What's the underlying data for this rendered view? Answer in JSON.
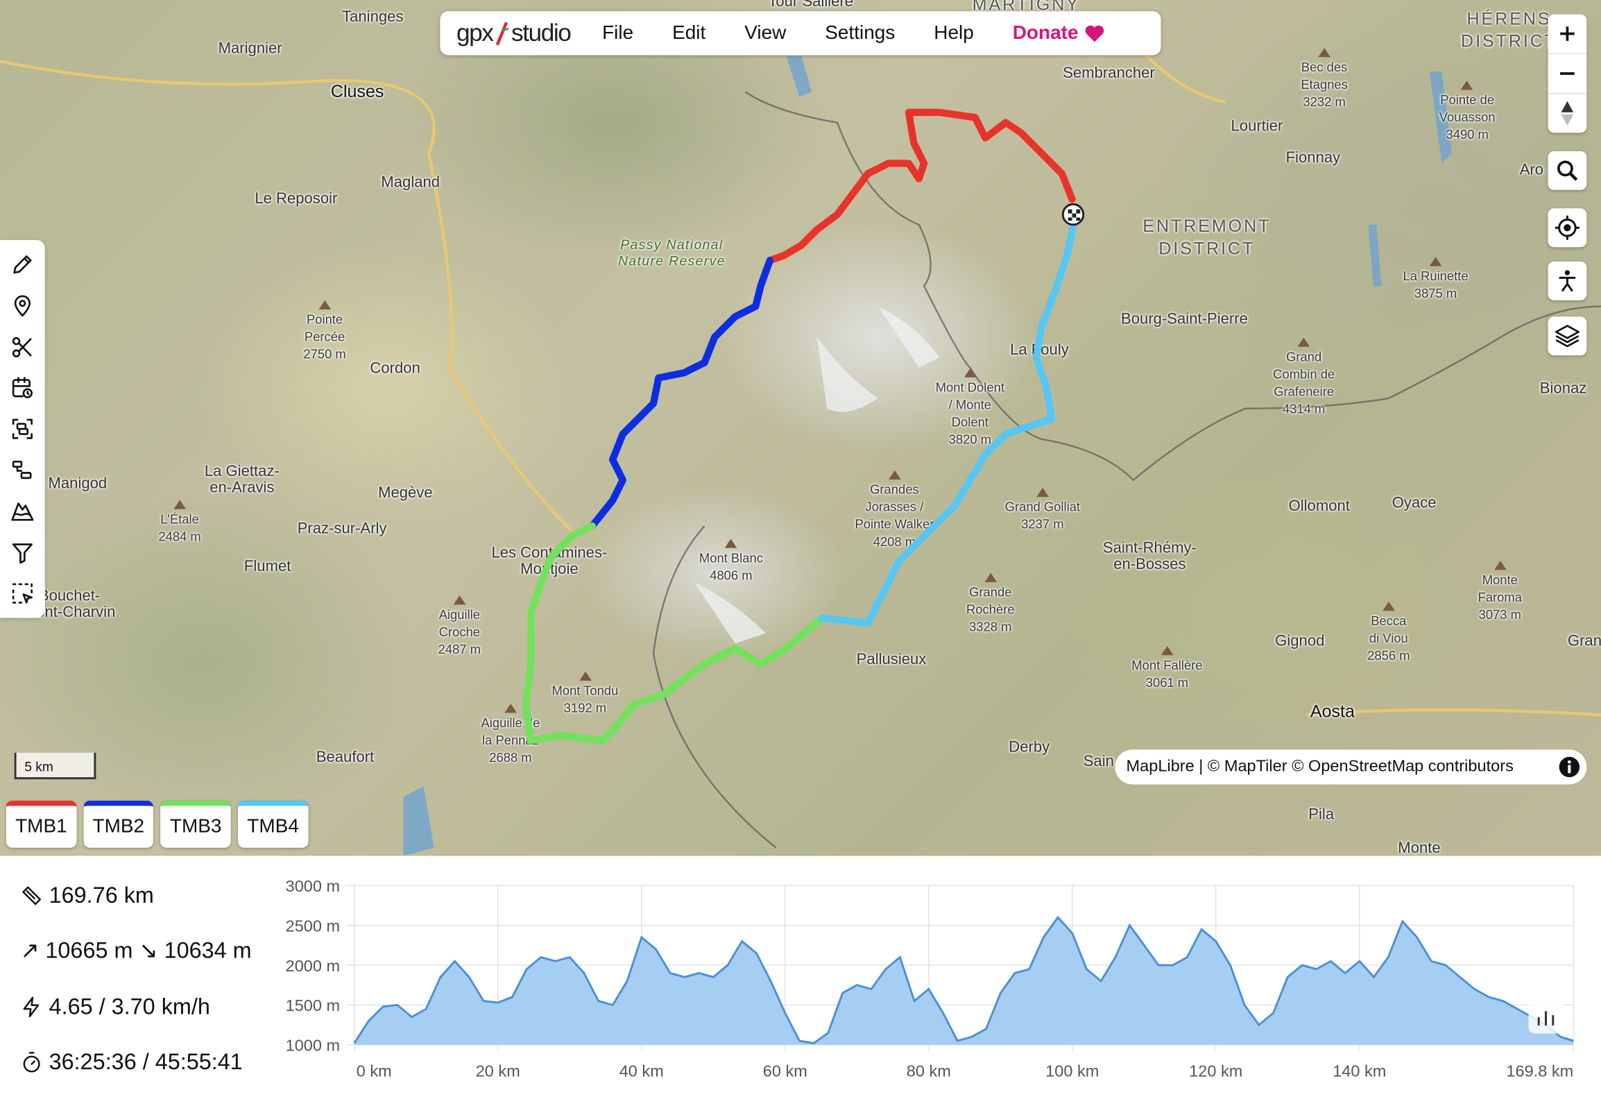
{
  "app": {
    "logo_left": "gpx",
    "logo_right": "studio"
  },
  "menu": {
    "file": "File",
    "edit": "Edit",
    "view": "View",
    "settings": "Settings",
    "help": "Help",
    "donate": "Donate"
  },
  "map": {
    "scale_label": "5 km",
    "attribution": "MapLibre | © MapTiler © OpenStreetMap contributors",
    "labels": {
      "taninges": "Taninges",
      "marignier": "Marignier",
      "cluses": "Cluses",
      "reposoir": "Le Reposoir",
      "magland": "Magland",
      "passy": "Passy National\nNature Reserve",
      "pointe_percee": "Pointe\nPercée\n2750 m",
      "cordon": "Cordon",
      "manigod": "Manigod",
      "giettaz": "La Giettaz-\nen-Aravis",
      "megeve": "Megève",
      "praz": "Praz-sur-Arly",
      "etale": "L'Étale\n2484 m",
      "flumet": "Flumet",
      "bouchet": "Bouchet-\nMont-Charvin",
      "contamines": "Les Contamines-\nMontjoie",
      "croche": "Aiguille\nCroche\n2487 m",
      "tondu": "Mont Tondu\n3192 m",
      "pennaz": "Aiguille de\nla Pennaz\n2688 m",
      "beaufort": "Beaufort",
      "montblanc": "Mont Blanc\n4806 m",
      "jorasses": "Grandes\nJorasses /\nPointe Walker\n4208 m",
      "dolent": "Mont Dolent\n/ Monte\nDolent\n3820 m",
      "fouly": "La Fouly",
      "golliat": "Grand Golliat\n3237 m",
      "rochere": "Grande\nRochère\n3328 m",
      "pallusieux": "Pallusieux",
      "derby": "Derby",
      "sembrancher": "Sembrancher",
      "lourtier": "Lourtier",
      "fionnay": "Fionnay",
      "entremont": "ENTREMONT\nDISTRICT",
      "bsp": "Bourg-Saint-Pierre",
      "combin": "Grand\nCombin de\nGrafeneire\n4314 m",
      "etagnes": "Bec des\nEtagnes\n3232 m",
      "vouasson": "Pointe de\nVouasson\n3490 m",
      "herens": "HÉRENS\nDISTRICT",
      "ruinette": "La Ruinette\n3875 m",
      "bionaz": "Bionaz",
      "ollomont": "Ollomont",
      "oyace": "Oyace",
      "srb": "Saint-Rhémy-\nen-Bosses",
      "gignod": "Gignod",
      "viou": "Becca\ndi Viou\n2856 m",
      "faroma": "Monte\nFaroma\n3073 m",
      "fallere": "Mont Fallère\n3061 m",
      "aosta": "Aosta",
      "pila": "Pila",
      "monte": "Monte",
      "martigny": "MARTIGNY",
      "sallière": "Tour Sallière",
      "aro": "Aro",
      "gran": "Gran",
      "sain": "Sain"
    }
  },
  "tracks": [
    {
      "name": "TMB1",
      "color": "#e8332a"
    },
    {
      "name": "TMB2",
      "color": "#0d2ee0"
    },
    {
      "name": "TMB3",
      "color": "#72e25c"
    },
    {
      "name": "TMB4",
      "color": "#57c6f2"
    }
  ],
  "stats": {
    "distance": "169.76 km",
    "elevation": "10665 m ↘ 10634 m",
    "elevation_up_icon": "↗",
    "speed": "4.65 / 3.70 km/h",
    "time": "36:25:36 / 45:55:41"
  },
  "chart_data": {
    "type": "area",
    "xlabel": "",
    "ylabel": "",
    "xlim": [
      0,
      169.8
    ],
    "ylim": [
      1000,
      3000
    ],
    "x_ticks": [
      "0 km",
      "20 km",
      "40 km",
      "60 km",
      "80 km",
      "100 km",
      "120 km",
      "140 km",
      "169.8 km"
    ],
    "x_tick_values": [
      0,
      20,
      40,
      60,
      80,
      100,
      120,
      140,
      169.8
    ],
    "y_ticks": [
      "1000 m",
      "1500 m",
      "2000 m",
      "2500 m",
      "3000 m"
    ],
    "y_tick_values": [
      1000,
      1500,
      2000,
      2500,
      3000
    ],
    "grid": true,
    "fill_color": "#a6cdf2",
    "line_color": "#4a90d9",
    "x": [
      0,
      2,
      4,
      6,
      8,
      10,
      12,
      14,
      16,
      18,
      20,
      22,
      24,
      26,
      28,
      30,
      32,
      34,
      36,
      38,
      40,
      42,
      44,
      46,
      48,
      50,
      52,
      54,
      56,
      58,
      60,
      62,
      64,
      66,
      68,
      70,
      72,
      74,
      76,
      78,
      80,
      82,
      84,
      86,
      88,
      90,
      92,
      94,
      96,
      98,
      100,
      102,
      104,
      106,
      108,
      110,
      112,
      114,
      116,
      118,
      120,
      122,
      124,
      126,
      128,
      130,
      132,
      134,
      136,
      138,
      140,
      142,
      144,
      146,
      148,
      150,
      152,
      154,
      156,
      158,
      160,
      162,
      164,
      166,
      168,
      169.8
    ],
    "y": [
      1020,
      1300,
      1480,
      1500,
      1350,
      1450,
      1850,
      2050,
      1850,
      1550,
      1530,
      1600,
      1950,
      2100,
      2050,
      2100,
      1900,
      1550,
      1500,
      1800,
      2350,
      2200,
      1900,
      1850,
      1900,
      1850,
      2000,
      2300,
      2150,
      1800,
      1400,
      1050,
      1020,
      1150,
      1650,
      1750,
      1700,
      1950,
      2100,
      1550,
      1700,
      1400,
      1050,
      1100,
      1200,
      1650,
      1900,
      1950,
      2350,
      2600,
      2400,
      1950,
      1800,
      2100,
      2500,
      2250,
      2000,
      2000,
      2100,
      2450,
      2300,
      2000,
      1500,
      1250,
      1400,
      1850,
      2000,
      1950,
      2050,
      1900,
      2050,
      1850,
      2100,
      2550,
      2350,
      2050,
      2000,
      1850,
      1700,
      1600,
      1550,
      1450,
      1350,
      1250,
      1100,
      1050
    ]
  }
}
